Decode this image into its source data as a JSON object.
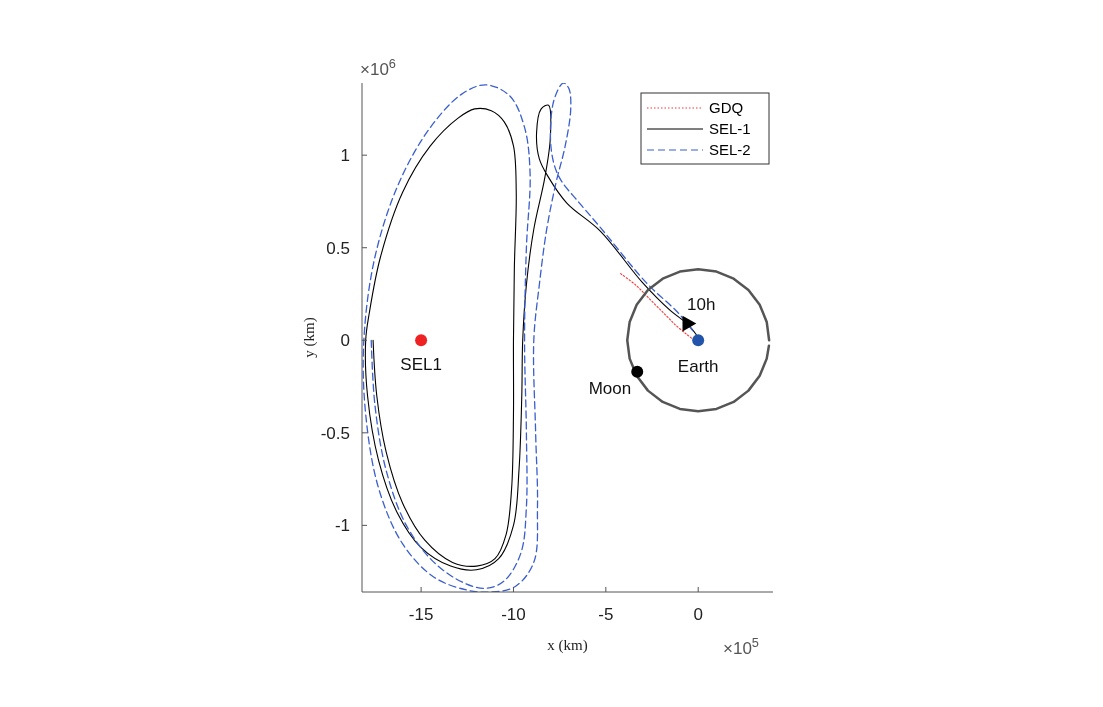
{
  "chart_data": {
    "type": "line",
    "xlabel": "x (km)",
    "ylabel": "y (km)",
    "xlim": [
      -18.2,
      4.05
    ],
    "ylim": [
      -1.36,
      1.39
    ],
    "xticks": [
      -15,
      -10,
      -5,
      0
    ],
    "yticks": [
      -1,
      -0.5,
      0,
      0.5,
      1
    ],
    "grid": false,
    "legend": "top right",
    "series": [
      {
        "name": "GDQ",
        "color": "#ff3333",
        "line_style": "dotted",
        "x": [
          -4.2,
          -3.4,
          -2.6,
          -1.8,
          -1.2,
          -0.6,
          -0.2
        ],
        "values": [
          0.36,
          0.3,
          0.22,
          0.14,
          0.08,
          0.03,
          0
        ]
      },
      {
        "name": "SEL-1",
        "color": "#000000",
        "line_style": "solid",
        "x": [
          -17.6,
          -17.4,
          -16.9,
          -16.0,
          -14.8,
          -13.3,
          -12.0,
          -11.0,
          -10.4,
          -10.1,
          -10.0,
          -10.0,
          -9.95,
          -9.85,
          -10.0,
          -10.5,
          -11.2,
          -12.1,
          -13.0,
          -14.5,
          -16.0,
          -17.2,
          -17.8,
          -18.0,
          -17.9,
          -17.3,
          -16.3,
          -15.0,
          -13.4,
          -12.0,
          -10.8,
          -10.0,
          -9.7,
          -9.55,
          -9.5,
          -9.3,
          -8.9,
          -8.3,
          -8.0,
          -8.1,
          -8.5,
          -8.75,
          -8.6,
          -8.1,
          -7.1,
          -5.3,
          -3.0,
          -1.5,
          -0.6,
          -0.1
        ],
        "values": [
          0,
          -0.3,
          -0.6,
          -0.88,
          -1.08,
          -1.2,
          -1.22,
          -1.18,
          -1.05,
          -0.8,
          -0.4,
          0,
          0.4,
          0.8,
          1.05,
          1.18,
          1.24,
          1.25,
          1.2,
          1.05,
          0.8,
          0.45,
          0.15,
          0,
          -0.3,
          -0.65,
          -0.93,
          -1.12,
          -1.22,
          -1.24,
          -1.18,
          -1.0,
          -0.7,
          -0.3,
          0,
          0.3,
          0.6,
          0.88,
          1.1,
          1.27,
          1.25,
          1.12,
          0.98,
          0.88,
          0.74,
          0.59,
          0.31,
          0.16,
          0.09,
          0.03
        ]
      },
      {
        "name": "SEL-2",
        "color": "#3a5fcd",
        "line_style": "dashed",
        "x": [
          -17.7,
          -17.5,
          -16.9,
          -15.8,
          -14.3,
          -12.7,
          -11.5,
          -10.5,
          -9.6,
          -9.3,
          -9.3,
          -9.4,
          -9.3,
          -9.1,
          -9.4,
          -10.2,
          -11.5,
          -12.8,
          -14.5,
          -16.2,
          -17.5,
          -18.1,
          -18.0,
          -17.3,
          -16.0,
          -14.3,
          -12.5,
          -11.2,
          -9.9,
          -8.9,
          -8.7,
          -8.8,
          -8.9,
          -8.6,
          -8.2,
          -7.7,
          -7.2,
          -6.9,
          -7.0,
          -7.3,
          -7.8,
          -8.0,
          -7.8,
          -7.4,
          -6.5,
          -5.3,
          -2.8,
          -1.1,
          -0.2
        ],
        "values": [
          0,
          -0.35,
          -0.7,
          -1.0,
          -1.2,
          -1.31,
          -1.34,
          -1.3,
          -1.15,
          -0.9,
          -0.5,
          0,
          0.5,
          0.9,
          1.15,
          1.32,
          1.38,
          1.33,
          1.15,
          0.85,
          0.45,
          0,
          -0.4,
          -0.8,
          -1.1,
          -1.28,
          -1.35,
          -1.36,
          -1.33,
          -1.2,
          -0.9,
          -0.5,
          0,
          0.3,
          0.6,
          0.85,
          1.05,
          1.25,
          1.36,
          1.39,
          1.3,
          1.1,
          0.95,
          0.86,
          0.75,
          0.61,
          0.31,
          0.15,
          0.04
        ]
      },
      {
        "type": "line",
        "color": "#555555",
        "line_style": "solid",
        "x": [
          3.84,
          3.71,
          3.33,
          2.72,
          1.92,
          0.99,
          0,
          -0.99,
          -1.92,
          -2.72,
          -3.33,
          -3.71,
          -3.84,
          -3.71,
          -3.33,
          -2.72,
          -1.92,
          -0.99,
          0,
          0.99,
          1.92,
          2.72,
          3.33,
          3.71,
          3.83
        ],
        "values": [
          0,
          0.099,
          0.192,
          0.272,
          0.333,
          0.371,
          0.384,
          0.371,
          0.333,
          0.272,
          0.192,
          0.099,
          0,
          -0.099,
          -0.192,
          -0.272,
          -0.333,
          -0.371,
          -0.384,
          -0.371,
          -0.333,
          -0.272,
          -0.192,
          -0.099,
          -0.03
        ]
      },
      {
        "type": "scatter",
        "color": "#ee2222",
        "marker": "circle",
        "x": [
          -15
        ],
        "values": [
          0
        ]
      },
      {
        "type": "scatter",
        "color": "#2255aa",
        "marker": "circle",
        "x": [
          0
        ],
        "values": [
          0
        ]
      },
      {
        "type": "scatter",
        "color": "#000000",
        "marker": "circle",
        "x": [
          -3.3
        ],
        "values": [
          -0.17
        ]
      },
      {
        "type": "scatter",
        "color": "#000000",
        "marker": "triangle",
        "x": [
          -0.6
        ],
        "values": [
          0.09
        ]
      }
    ],
    "annotations": [
      {
        "text": "SEL1",
        "x": -15,
        "y": 0
      },
      {
        "text": "Earth",
        "x": 0,
        "y": 0
      },
      {
        "text": "Moon",
        "x": -3.3,
        "y": -0.17
      },
      {
        "text": "10h",
        "x": -0.6,
        "y": 0.09
      },
      "×10$^{6}$",
      "×10$^{5}$"
    ]
  }
}
